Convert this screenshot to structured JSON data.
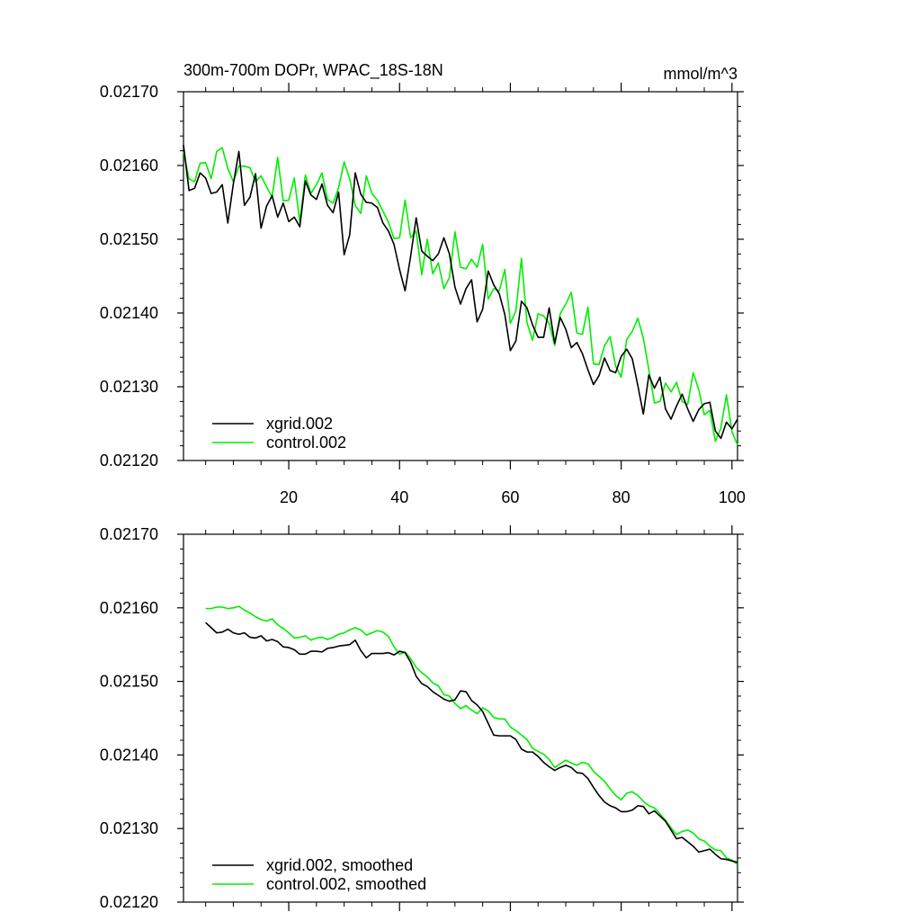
{
  "chart_data": [
    {
      "type": "line",
      "title": "300m-700m DOPr, WPAC_18S-18N",
      "units": "mmol/m^3",
      "xlim": [
        1,
        101
      ],
      "ylim": [
        0.0212,
        0.0217
      ],
      "x_ticks": [
        20,
        40,
        60,
        80,
        100
      ],
      "x_tick_labels": [
        "20",
        "40",
        "60",
        "80",
        "100"
      ],
      "y_ticks": [
        0.0212,
        0.0213,
        0.0214,
        0.0215,
        0.0216,
        0.0217
      ],
      "y_tick_labels": [
        "0.02120",
        "0.02130",
        "0.02140",
        "0.02150",
        "0.02160",
        "0.02170"
      ],
      "legend_position": "bottom-left",
      "series": [
        {
          "name": "xgrid.002",
          "color": "#000000",
          "x_start": 1,
          "values": [
            0.021628,
            0.021566,
            0.021569,
            0.02159,
            0.021583,
            0.021562,
            0.021564,
            0.021574,
            0.021522,
            0.021575,
            0.021619,
            0.021546,
            0.021557,
            0.021589,
            0.021515,
            0.021545,
            0.021559,
            0.02153,
            0.021549,
            0.021524,
            0.02153,
            0.021517,
            0.021579,
            0.02156,
            0.021554,
            0.021575,
            0.021546,
            0.021536,
            0.021564,
            0.021479,
            0.021506,
            0.02159,
            0.021561,
            0.02155,
            0.021549,
            0.021543,
            0.021522,
            0.021511,
            0.021493,
            0.021459,
            0.02143,
            0.021477,
            0.021529,
            0.021484,
            0.021477,
            0.021471,
            0.02148,
            0.021502,
            0.02148,
            0.021435,
            0.021412,
            0.021433,
            0.021445,
            0.021388,
            0.021405,
            0.021457,
            0.021438,
            0.021426,
            0.021398,
            0.021349,
            0.021362,
            0.021416,
            0.021407,
            0.021384,
            0.021367,
            0.021367,
            0.021407,
            0.021359,
            0.021394,
            0.021378,
            0.021353,
            0.02136,
            0.021345,
            0.021323,
            0.021303,
            0.021315,
            0.021339,
            0.021322,
            0.021319,
            0.021341,
            0.021351,
            0.021338,
            0.021302,
            0.021263,
            0.021316,
            0.021298,
            0.021313,
            0.02127,
            0.021256,
            0.021274,
            0.02129,
            0.02127,
            0.021253,
            0.021269,
            0.021277,
            0.021279,
            0.02124,
            0.02123,
            0.021252,
            0.021243,
            0.021256
          ]
        },
        {
          "name": "control.002",
          "color": "#00ee00",
          "x_start": 1,
          "values": [
            0.021619,
            0.021582,
            0.021578,
            0.021603,
            0.021604,
            0.021582,
            0.021619,
            0.021624,
            0.021596,
            0.021578,
            0.021599,
            0.021599,
            0.021597,
            0.021578,
            0.021586,
            0.021571,
            0.021557,
            0.021611,
            0.021552,
            0.021553,
            0.021583,
            0.021523,
            0.021587,
            0.021562,
            0.021574,
            0.02159,
            0.021554,
            0.021549,
            0.02157,
            0.021605,
            0.021582,
            0.021546,
            0.021535,
            0.021586,
            0.021562,
            0.021553,
            0.021538,
            0.021523,
            0.021501,
            0.021502,
            0.021553,
            0.021502,
            0.021511,
            0.021452,
            0.0215,
            0.021453,
            0.021468,
            0.021433,
            0.021448,
            0.02151,
            0.021462,
            0.02146,
            0.021473,
            0.021462,
            0.021493,
            0.021419,
            0.021433,
            0.02143,
            0.021459,
            0.021386,
            0.021403,
            0.021474,
            0.021387,
            0.021363,
            0.021399,
            0.021396,
            0.021386,
            0.021356,
            0.021399,
            0.021412,
            0.021428,
            0.021373,
            0.021371,
            0.021408,
            0.021331,
            0.02133,
            0.021356,
            0.021368,
            0.021328,
            0.021313,
            0.021364,
            0.021375,
            0.021393,
            0.021366,
            0.021323,
            0.021278,
            0.02128,
            0.021305,
            0.021293,
            0.021306,
            0.02128,
            0.021276,
            0.021319,
            0.021296,
            0.021262,
            0.021268,
            0.021226,
            0.021244,
            0.021289,
            0.021239,
            0.021221
          ]
        }
      ]
    },
    {
      "type": "line",
      "title": "",
      "units": "",
      "xlim": [
        1,
        101
      ],
      "ylim": [
        0.0212,
        0.0217
      ],
      "x_ticks": [
        20,
        40,
        60,
        80,
        100
      ],
      "x_tick_labels": [],
      "y_ticks": [
        0.0212,
        0.0213,
        0.0214,
        0.0215,
        0.0216,
        0.0217
      ],
      "y_tick_labels": [
        "0.02120",
        "0.02130",
        "0.02140",
        "0.02150",
        "0.02160",
        "0.02170"
      ],
      "legend_position": "bottom-left",
      "series": [
        {
          "name": "xgrid.002, smoothed",
          "color": "#000000",
          "x_start": 5,
          "values": [
            0.02158,
            0.021573,
            0.021566,
            0.021567,
            0.021571,
            0.021566,
            0.021564,
            0.021566,
            0.02156,
            0.021559,
            0.021562,
            0.021555,
            0.021557,
            0.021554,
            0.021547,
            0.021546,
            0.021543,
            0.021537,
            0.021537,
            0.021541,
            0.021541,
            0.02154,
            0.021545,
            0.021546,
            0.021548,
            0.021549,
            0.02155,
            0.021556,
            0.021542,
            0.021532,
            0.021538,
            0.021538,
            0.021538,
            0.021539,
            0.021536,
            0.021541,
            0.021539,
            0.021526,
            0.021507,
            0.021497,
            0.021493,
            0.021486,
            0.021481,
            0.021476,
            0.021473,
            0.021475,
            0.021487,
            0.021486,
            0.021474,
            0.021468,
            0.021459,
            0.021443,
            0.021427,
            0.021426,
            0.021426,
            0.021426,
            0.021421,
            0.021408,
            0.021404,
            0.021404,
            0.021398,
            0.02139,
            0.021384,
            0.021379,
            0.021383,
            0.021386,
            0.021383,
            0.021376,
            0.021375,
            0.021368,
            0.021356,
            0.021345,
            0.021336,
            0.021331,
            0.021328,
            0.021323,
            0.021323,
            0.021325,
            0.021331,
            0.02133,
            0.02132,
            0.021324,
            0.021317,
            0.02131,
            0.021298,
            0.021286,
            0.021288,
            0.021282,
            0.021276,
            0.021268,
            0.02127,
            0.021272,
            0.021265,
            0.021259,
            0.021258,
            0.021256,
            0.021254
          ]
        },
        {
          "name": "control.002, smoothed",
          "color": "#00ee00",
          "x_start": 5,
          "values": [
            0.021599,
            0.021599,
            0.021601,
            0.021601,
            0.021599,
            0.0216,
            0.021602,
            0.021597,
            0.021593,
            0.021588,
            0.021584,
            0.021582,
            0.021585,
            0.021577,
            0.021572,
            0.021566,
            0.021559,
            0.02156,
            0.021562,
            0.021556,
            0.021559,
            0.02156,
            0.021557,
            0.02156,
            0.021564,
            0.021566,
            0.02157,
            0.021573,
            0.02157,
            0.021563,
            0.021566,
            0.021569,
            0.021567,
            0.021561,
            0.021547,
            0.021537,
            0.02154,
            0.021531,
            0.021519,
            0.021512,
            0.021506,
            0.021498,
            0.021494,
            0.021482,
            0.02148,
            0.02147,
            0.021463,
            0.021467,
            0.021461,
            0.021456,
            0.021464,
            0.02146,
            0.021451,
            0.021449,
            0.021449,
            0.021438,
            0.021433,
            0.021427,
            0.021421,
            0.021409,
            0.021405,
            0.021401,
            0.021394,
            0.021383,
            0.021388,
            0.021393,
            0.021389,
            0.021386,
            0.02139,
            0.021388,
            0.021378,
            0.021371,
            0.021364,
            0.021354,
            0.021345,
            0.021339,
            0.021348,
            0.02135,
            0.021345,
            0.021337,
            0.021331,
            0.021328,
            0.02132,
            0.021311,
            0.021301,
            0.021292,
            0.021296,
            0.021298,
            0.021294,
            0.021286,
            0.021283,
            0.021276,
            0.021271,
            0.02127,
            0.02126,
            0.021257,
            0.021251
          ]
        }
      ]
    }
  ]
}
